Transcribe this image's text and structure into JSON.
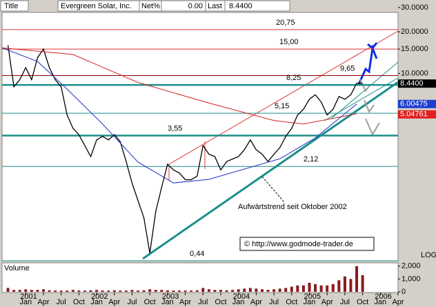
{
  "header": {
    "title_label": "Title",
    "name": "Evergreen Solar, Inc.",
    "net_label": "Net%",
    "net": "0.00",
    "last_label": "Last",
    "last": "8.4400"
  },
  "chart_data": {
    "type": "line",
    "log_scale": true,
    "series": [
      {
        "color": "#000000",
        "x": [
          "2000-10",
          "2000-11",
          "2000-12",
          "2001-01",
          "2001-02",
          "2001-03",
          "2001-04",
          "2001-05",
          "2001-06",
          "2001-07",
          "2001-08",
          "2001-09",
          "2001-10",
          "2001-11",
          "2001-12",
          "2002-01",
          "2002-02",
          "2002-03",
          "2002-04",
          "2002-05",
          "2002-06",
          "2002-07",
          "2002-08",
          "2002-09",
          "2002-10",
          "2002-11",
          "2002-12",
          "2003-01",
          "2003-02",
          "2003-03",
          "2003-04",
          "2003-05",
          "2003-06",
          "2003-07",
          "2003-08",
          "2003-09",
          "2003-10",
          "2003-11",
          "2003-12",
          "2004-01",
          "2004-02",
          "2004-03",
          "2004-04",
          "2004-05",
          "2004-06",
          "2004-07",
          "2004-08",
          "2004-09",
          "2004-10",
          "2004-11",
          "2004-12",
          "2005-01",
          "2005-02",
          "2005-03",
          "2005-04",
          "2005-05",
          "2005-06",
          "2005-07",
          "2005-08",
          "2005-09",
          "2005-10"
        ],
        "values": [
          16,
          8,
          9,
          11,
          9,
          13,
          15,
          11,
          9,
          8,
          5,
          4,
          3.6,
          3,
          2.5,
          3.3,
          3.5,
          3.3,
          3.6,
          3.2,
          2.3,
          1.6,
          1.2,
          0.9,
          0.5,
          1.0,
          1.5,
          2.2,
          2.0,
          1.9,
          1.7,
          1.7,
          1.8,
          3.0,
          2.6,
          2.5,
          2.0,
          2.3,
          2.4,
          2.5,
          2.8,
          3.3,
          2.8,
          2.6,
          2.3,
          2.6,
          2.9,
          3.5,
          4.0,
          5.0,
          5.5,
          6.5,
          7.0,
          6.2,
          5.0,
          5.5,
          6.8,
          6.5,
          7.0,
          8.5,
          8.44
        ]
      },
      {
        "color": "#d42020",
        "x": [
          "2000-09",
          "2001-09",
          "2002-08",
          "2003-08",
          "2004-07",
          "2004-12",
          "2005-09"
        ],
        "values": [
          15.3,
          13.7,
          8.6,
          6.1,
          4.56,
          4.3,
          5.1
        ]
      },
      {
        "color": "#2030c8",
        "x": [
          "2000-09",
          "2001-03",
          "2001-08",
          "2002-02",
          "2002-08",
          "2003-02",
          "2003-08",
          "2004-02",
          "2004-08",
          "2005-02",
          "2005-09"
        ],
        "values": [
          15.3,
          12.2,
          7.7,
          4.3,
          2.28,
          1.61,
          1.71,
          2.03,
          2.41,
          3.41,
          6.0
        ]
      }
    ],
    "levels": [
      {
        "value": 20.75,
        "label": "20,75",
        "color": "#e03030"
      },
      {
        "value": 15.0,
        "label": "15,00",
        "color": "#e03030"
      },
      {
        "value": 9.65,
        "label": "9,65",
        "color": "#8b0000"
      },
      {
        "value": 8.25,
        "label": "8,25",
        "color": "#1a8f8a"
      },
      {
        "value": 5.15,
        "label": "5,15",
        "color": "#1a8f8a"
      },
      {
        "value": 3.55,
        "label": "3,55",
        "color": "#1a8f8a"
      },
      {
        "value": 2.12,
        "label": "2,12",
        "color": "#1a8f8a"
      },
      {
        "value": 0.44,
        "label": "0,44",
        "color": "#1a8f8a"
      }
    ],
    "price_tags": [
      {
        "value": 8.44,
        "label": "8.4400",
        "color": "#000000"
      },
      {
        "value": 6.00475,
        "label": "6.00475",
        "color": "#1f3fd0"
      },
      {
        "value": 5.04761,
        "label": "5.04761",
        "color": "#e02020"
      }
    ],
    "annotations": [
      "Aufwärtstrend seit Oktober 2002",
      "© http://www.godmode-trader.de"
    ],
    "scale_label": "LOG",
    "ylim": [
      0.44,
      31
    ],
    "yticks": [
      {
        "value": 30,
        "label": "30.0000"
      },
      {
        "value": 20,
        "label": "20.0000"
      },
      {
        "value": 15,
        "label": "15.0000"
      },
      {
        "value": 10,
        "label": "10.0000"
      }
    ],
    "xlim": [
      "2000-09",
      "2006-04"
    ],
    "xticks": [
      {
        "value": "2001-01",
        "label": "Jan"
      },
      {
        "value": "2001-04",
        "label": "Apr"
      },
      {
        "value": "2001-07",
        "label": "Jul"
      },
      {
        "value": "2001-10",
        "label": "Oct"
      },
      {
        "value": "2002-01",
        "label": "Jan"
      },
      {
        "value": "2002-04",
        "label": "Apr"
      },
      {
        "value": "2002-07",
        "label": "Jul"
      },
      {
        "value": "2002-10",
        "label": "Oct"
      },
      {
        "value": "2003-01",
        "label": "Jan"
      },
      {
        "value": "2003-04",
        "label": "Apr"
      },
      {
        "value": "2003-07",
        "label": "Jul"
      },
      {
        "value": "2003-10",
        "label": "Oct"
      },
      {
        "value": "2004-01",
        "label": "Jan"
      },
      {
        "value": "2004-04",
        "label": "Apr"
      },
      {
        "value": "2004-07",
        "label": "Jul"
      },
      {
        "value": "2004-10",
        "label": "Oct"
      },
      {
        "value": "2005-01",
        "label": "Jan"
      },
      {
        "value": "2005-04",
        "label": "Apr"
      },
      {
        "value": "2005-07",
        "label": "Jul"
      },
      {
        "value": "2005-10",
        "label": "Oct"
      },
      {
        "value": "2006-01",
        "label": "Jan"
      },
      {
        "value": "2006-04",
        "label": "Apr"
      }
    ],
    "years": [
      {
        "value": "2001-01",
        "label": "2001"
      },
      {
        "value": "2002-01",
        "label": "2002"
      },
      {
        "value": "2003-01",
        "label": "2003"
      },
      {
        "value": "2004-01",
        "label": "2004"
      },
      {
        "value": "2005-01",
        "label": "2005"
      },
      {
        "value": "2006-01",
        "label": "2006"
      }
    ],
    "volume": {
      "name": "Volume",
      "color": "#8b1a1a",
      "values": [
        300,
        150,
        150,
        200,
        150,
        150,
        200,
        120,
        100,
        100,
        100,
        150,
        100,
        100,
        120,
        150,
        100,
        100,
        120,
        100,
        100,
        150,
        100,
        120,
        200,
        150,
        150,
        120,
        100,
        100,
        100,
        100,
        120,
        300,
        200,
        150,
        150,
        120,
        150,
        200,
        250,
        300,
        250,
        200,
        150,
        200,
        250,
        300,
        400,
        500,
        500,
        700,
        600,
        500,
        500,
        600,
        900,
        1200,
        1000,
        2000,
        1300
      ],
      "ylim": [
        0,
        2150
      ],
      "yticks": [
        {
          "value": 2000,
          "label": "2,000"
        },
        {
          "value": 1000,
          "label": "1,000"
        },
        0
      ]
    }
  }
}
